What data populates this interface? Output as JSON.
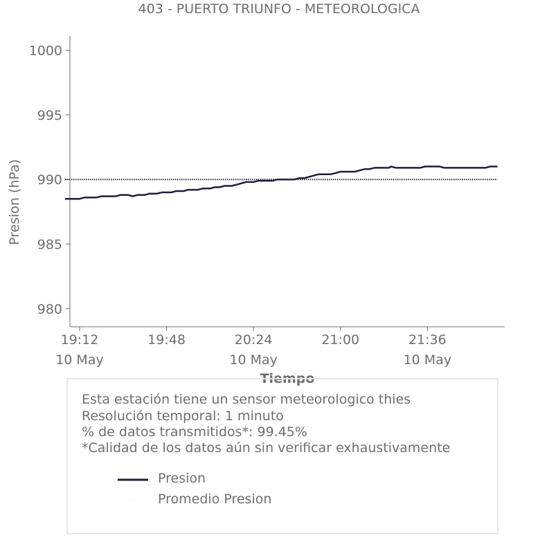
{
  "chart_data": {
    "type": "line",
    "title": "403 - PUERTO TRIUNFO - METEOROLOGICA",
    "xlabel": "Tiempo",
    "ylabel": "Presion (hPa)",
    "ylim": [
      978.6,
      1001.1
    ],
    "xlim": [
      "2023-05-10 19:08",
      "2023-05-10 22:08"
    ],
    "yticks": [
      980,
      985,
      990,
      995,
      1000
    ],
    "xticks": [
      {
        "time": "2023-05-10 19:12",
        "label": "19:12",
        "sublabel": "10 May"
      },
      {
        "time": "2023-05-10 19:48",
        "label": "19:48",
        "sublabel": ""
      },
      {
        "time": "2023-05-10 20:24",
        "label": "20:24",
        "sublabel": "10 May"
      },
      {
        "time": "2023-05-10 21:00",
        "label": "21:00",
        "sublabel": ""
      },
      {
        "time": "2023-05-10 21:36",
        "label": "21:36",
        "sublabel": "10 May"
      }
    ],
    "series": [
      {
        "name": "Presion",
        "color": "#1f1f3d",
        "style": "solid",
        "points": [
          [
            "2023-05-10 19:06",
            988.5
          ],
          [
            "2023-05-10 19:12",
            988.5
          ],
          [
            "2023-05-10 19:14",
            988.6
          ],
          [
            "2023-05-10 19:19",
            988.6
          ],
          [
            "2023-05-10 19:21",
            988.7
          ],
          [
            "2023-05-10 19:27",
            988.7
          ],
          [
            "2023-05-10 19:29",
            988.8
          ],
          [
            "2023-05-10 19:32",
            988.8
          ],
          [
            "2023-05-10 19:34",
            988.7
          ],
          [
            "2023-05-10 19:36",
            988.8
          ],
          [
            "2023-05-10 19:39",
            988.8
          ],
          [
            "2023-05-10 19:41",
            988.9
          ],
          [
            "2023-05-10 19:44",
            988.9
          ],
          [
            "2023-05-10 19:46",
            989.0
          ],
          [
            "2023-05-10 19:50",
            989.0
          ],
          [
            "2023-05-10 19:52",
            989.1
          ],
          [
            "2023-05-10 19:55",
            989.1
          ],
          [
            "2023-05-10 19:57",
            989.2
          ],
          [
            "2023-05-10 20:01",
            989.2
          ],
          [
            "2023-05-10 20:03",
            989.3
          ],
          [
            "2023-05-10 20:06",
            989.3
          ],
          [
            "2023-05-10 20:08",
            989.4
          ],
          [
            "2023-05-10 20:10",
            989.4
          ],
          [
            "2023-05-10 20:12",
            989.5
          ],
          [
            "2023-05-10 20:15",
            989.5
          ],
          [
            "2023-05-10 20:17",
            989.6
          ],
          [
            "2023-05-10 20:19",
            989.7
          ],
          [
            "2023-05-10 20:21",
            989.8
          ],
          [
            "2023-05-10 20:24",
            989.8
          ],
          [
            "2023-05-10 20:26",
            989.9
          ],
          [
            "2023-05-10 20:32",
            989.9
          ],
          [
            "2023-05-10 20:34",
            990.0
          ],
          [
            "2023-05-10 20:41",
            990.0
          ],
          [
            "2023-05-10 20:43",
            990.1
          ],
          [
            "2023-05-10 20:45",
            990.1
          ],
          [
            "2023-05-10 20:47",
            990.2
          ],
          [
            "2023-05-10 20:49",
            990.3
          ],
          [
            "2023-05-10 20:51",
            990.4
          ],
          [
            "2023-05-10 20:56",
            990.4
          ],
          [
            "2023-05-10 20:58",
            990.5
          ],
          [
            "2023-05-10 21:00",
            990.6
          ],
          [
            "2023-05-10 21:06",
            990.6
          ],
          [
            "2023-05-10 21:08",
            990.7
          ],
          [
            "2023-05-10 21:10",
            990.8
          ],
          [
            "2023-05-10 21:12",
            990.8
          ],
          [
            "2023-05-10 21:14",
            990.9
          ],
          [
            "2023-05-10 21:20",
            990.9
          ],
          [
            "2023-05-10 21:21",
            991.0
          ],
          [
            "2023-05-10 21:23",
            990.9
          ],
          [
            "2023-05-10 21:33",
            990.9
          ],
          [
            "2023-05-10 21:35",
            991.0
          ],
          [
            "2023-05-10 21:41",
            991.0
          ],
          [
            "2023-05-10 21:43",
            990.9
          ],
          [
            "2023-05-10 21:58",
            990.9
          ],
          [
            "2023-05-10 22:00",
            990.9
          ],
          [
            "2023-05-10 22:02",
            991.0
          ],
          [
            "2023-05-10 22:05",
            991.0
          ]
        ]
      },
      {
        "name": "Promedio Presion",
        "color": "#1f1f3d",
        "style": "dotted",
        "points": [
          [
            "2023-05-10 19:06",
            990.0
          ],
          [
            "2023-05-10 22:05",
            990.0
          ]
        ]
      }
    ],
    "legend_placement": "below",
    "grid": false
  },
  "info": {
    "lines": [
      "Esta estación tiene un sensor meteorologico thies",
      "Resolución temporal: 1 minuto",
      "% de datos transmitidos*: 99.45%",
      "*Calidad de los datos aún sin verificar exhaustivamente"
    ]
  },
  "legend": {
    "items": [
      {
        "label": "Presion"
      },
      {
        "label": "Promedio Presion"
      }
    ]
  }
}
